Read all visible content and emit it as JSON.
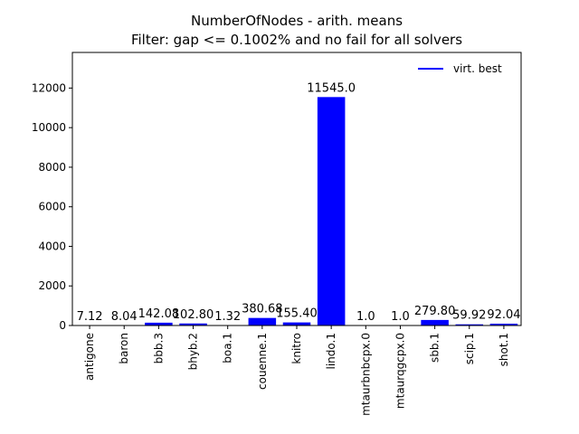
{
  "chart_data": {
    "type": "bar",
    "title_line1": "NumberOfNodes - arith. means",
    "title_line2": "Filter: gap <= 0.1002% and no fail for all solvers",
    "categories": [
      "antigone",
      "baron",
      "bbb.3",
      "bhyb.2",
      "boa.1",
      "couenne.1",
      "knitro",
      "lindo.1",
      "mtaurbnbcpx.0",
      "mtaurqgcpx.0",
      "sbb.1",
      "scip.1",
      "shot.1"
    ],
    "series": [
      {
        "name": "virt. best",
        "color": "#0000ff",
        "values": [
          7.12,
          8.04,
          142.08,
          102.8,
          1.32,
          380.68,
          155.4,
          11545.0,
          1.0,
          1.0,
          279.8,
          59.92,
          92.04
        ],
        "labels": [
          "7.12",
          "8.04",
          "142.08",
          "102.80",
          "1.32",
          "380.68",
          "155.40",
          "11545.0",
          "1.0",
          "1.0",
          "279.80",
          "59.92",
          "92.04"
        ]
      }
    ],
    "ylim": [
      0,
      13800
    ],
    "yticks": [
      0,
      2000,
      4000,
      6000,
      8000,
      10000,
      12000
    ],
    "ytick_labels": [
      "0",
      "2000",
      "4000",
      "6000",
      "8000",
      "10000",
      "12000"
    ],
    "legend_position": "top-right",
    "grid": false
  }
}
